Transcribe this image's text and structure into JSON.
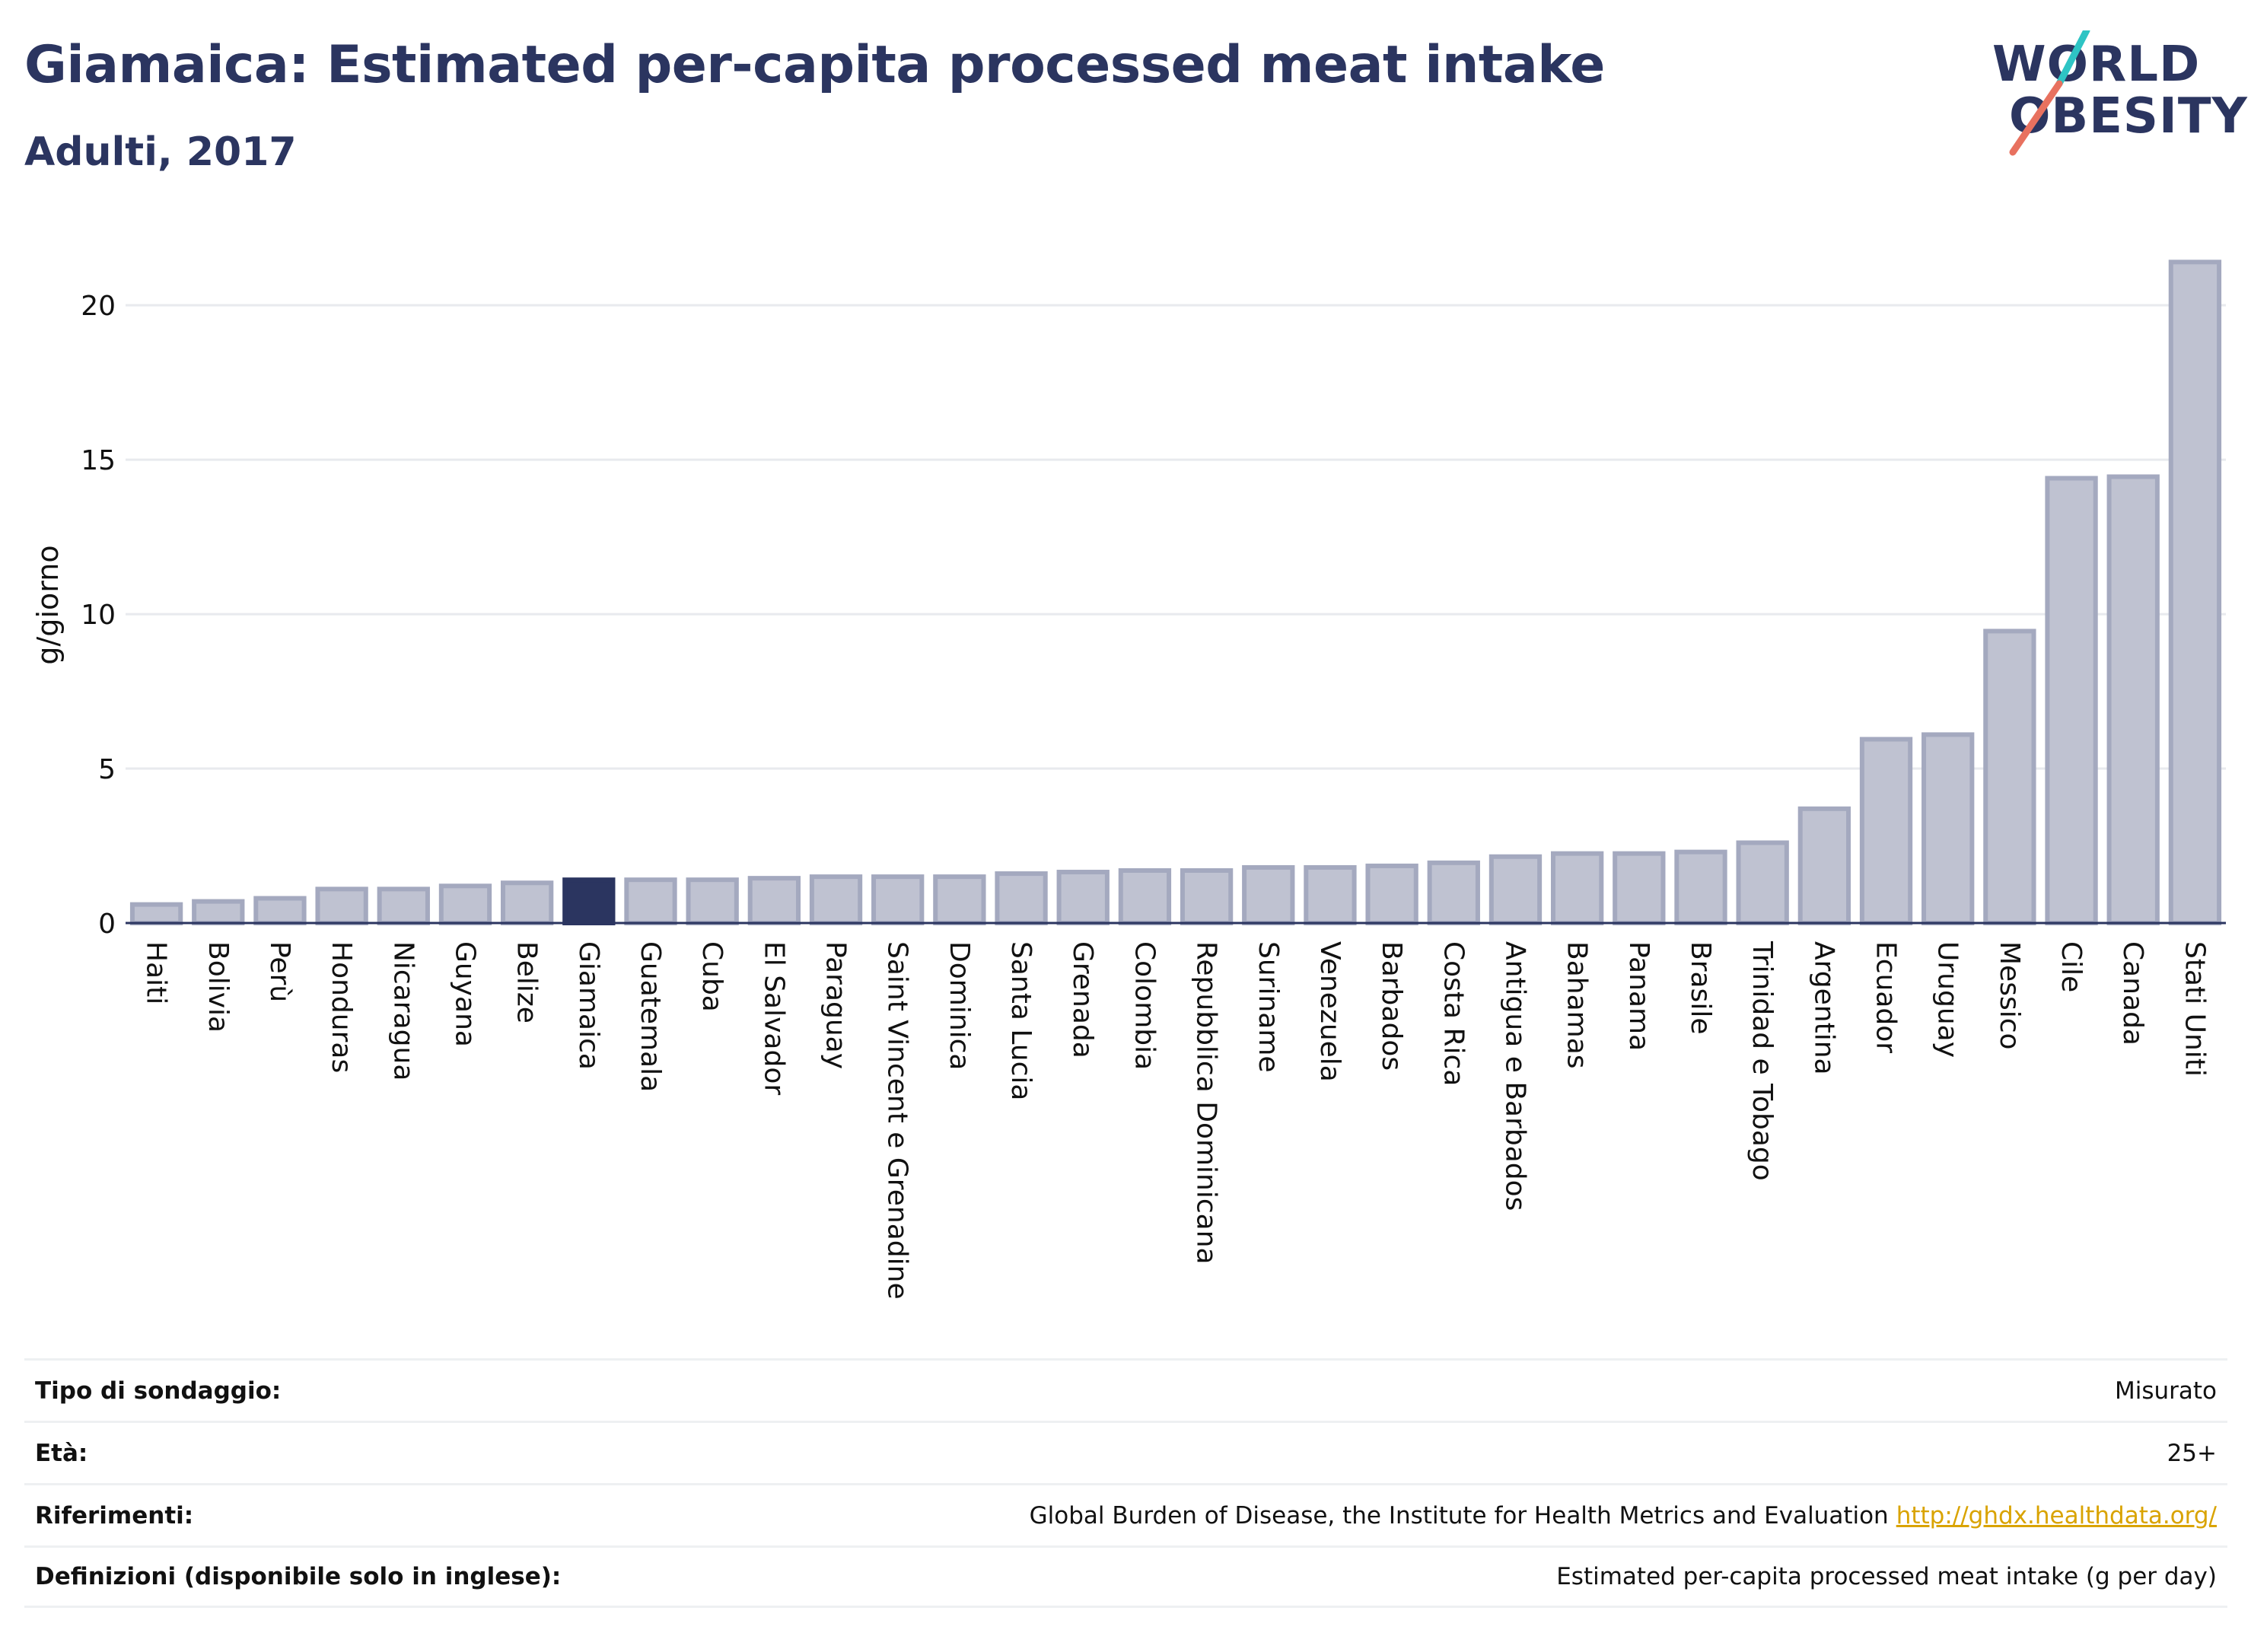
{
  "header": {
    "title": "Giamaica: Estimated per-capita processed meat intake",
    "subtitle": "Adulti, 2017"
  },
  "logo": {
    "line1": "WORLD",
    "line2": "OBESITY",
    "accent_colors": [
      "#2ec4c4",
      "#e8715f"
    ]
  },
  "chart_data": {
    "type": "bar",
    "ylabel": "g/giorno",
    "xlabel": "",
    "ylim": [
      0,
      22
    ],
    "yticks": [
      0,
      5,
      10,
      15,
      20
    ],
    "grid": true,
    "highlight": "Giamaica",
    "colors": {
      "bar": "#bfc2d1",
      "bar_border": "#a4a9bf",
      "highlight": "#2b3560"
    },
    "categories": [
      "Haiti",
      "Bolivia",
      "Perù",
      "Honduras",
      "Nicaragua",
      "Guyana",
      "Belize",
      "Giamaica",
      "Guatemala",
      "Cuba",
      "El Salvador",
      "Paraguay",
      "Saint Vincent e Grenadine",
      "Dominica",
      "Santa Lucia",
      "Grenada",
      "Colombia",
      "Repubblica Dominicana",
      "Suriname",
      "Venezuela",
      "Barbados",
      "Costa Rica",
      "Antigua e Barbados",
      "Bahamas",
      "Panama",
      "Brasile",
      "Trinidad e Tobago",
      "Argentina",
      "Ecuador",
      "Uruguay",
      "Messico",
      "Cile",
      "Canada",
      "Stati Uniti"
    ],
    "values": [
      0.6,
      0.7,
      0.8,
      1.1,
      1.1,
      1.2,
      1.3,
      1.4,
      1.4,
      1.4,
      1.45,
      1.5,
      1.5,
      1.5,
      1.6,
      1.65,
      1.7,
      1.7,
      1.8,
      1.8,
      1.85,
      1.95,
      2.15,
      2.25,
      2.25,
      2.3,
      2.6,
      3.7,
      5.95,
      6.1,
      9.45,
      14.4,
      14.45,
      21.4
    ]
  },
  "footer": [
    {
      "key": "Tipo di sondaggio:",
      "value": "Misurato"
    },
    {
      "key": "Età:",
      "value": "25+"
    },
    {
      "key": "Riferimenti:",
      "value": "Global Burden of Disease, the Institute for Health Metrics and Evaluation",
      "link": "http://ghdx.healthdata.org/"
    },
    {
      "key": "Definizioni (disponibile solo in inglese):",
      "value": "Estimated per-capita processed meat intake (g per day)"
    }
  ]
}
